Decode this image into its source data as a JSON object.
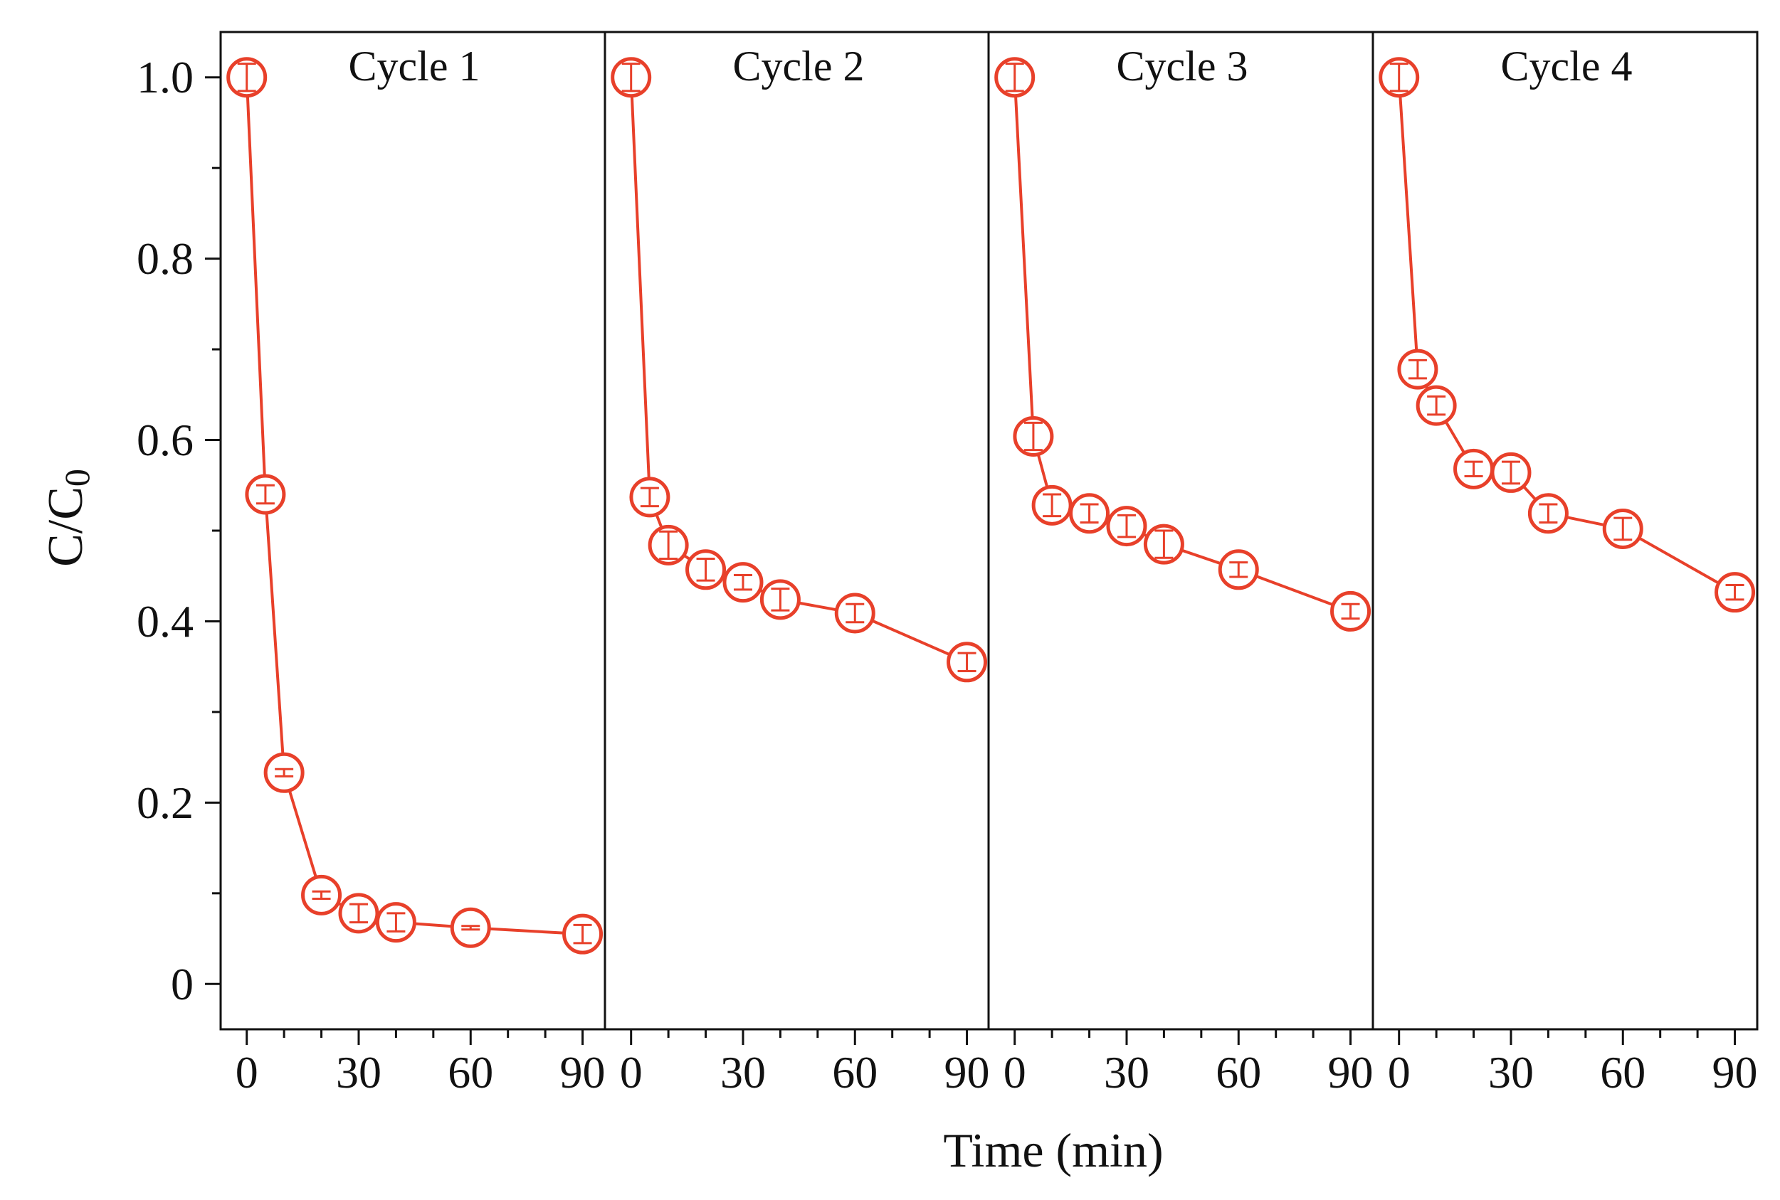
{
  "chart_data": {
    "type": "line",
    "xlabel": "Time (min)",
    "ylabel": "C/C",
    "ylabel_subscript": "0",
    "ylim": [
      -0.05,
      1.05
    ],
    "xlim": [
      -7,
      96
    ],
    "y_ticks": [
      0,
      0.2,
      0.4,
      0.6,
      0.8,
      1.0
    ],
    "y_tick_labels": [
      "0",
      "0.2",
      "0.4",
      "0.6",
      "0.8",
      "1.0"
    ],
    "x_ticks": [
      0,
      30,
      60,
      90
    ],
    "x_tick_labels": [
      "0",
      "30",
      "60",
      "90"
    ],
    "marker": "open-circle",
    "colors": {
      "series": "#e8402a",
      "axis": "#111111"
    },
    "series": [
      {
        "name": "Cycle 1",
        "x": [
          0,
          5,
          10,
          20,
          30,
          40,
          60,
          90
        ],
        "values": [
          1.0,
          0.54,
          0.233,
          0.098,
          0.078,
          0.068,
          0.062,
          0.055
        ],
        "errors": [
          0.015,
          0.01,
          0.004,
          0.004,
          0.01,
          0.01,
          0.002,
          0.01
        ]
      },
      {
        "name": "Cycle 2",
        "x": [
          0,
          5,
          10,
          20,
          30,
          40,
          60,
          90
        ],
        "values": [
          1.0,
          0.537,
          0.484,
          0.457,
          0.443,
          0.424,
          0.409,
          0.355
        ],
        "errors": [
          0.015,
          0.01,
          0.015,
          0.012,
          0.008,
          0.012,
          0.01,
          0.01
        ]
      },
      {
        "name": "Cycle 3",
        "x": [
          0,
          5,
          10,
          20,
          30,
          40,
          60,
          90
        ],
        "values": [
          1.0,
          0.604,
          0.528,
          0.519,
          0.505,
          0.485,
          0.457,
          0.411
        ],
        "errors": [
          0.015,
          0.015,
          0.012,
          0.01,
          0.012,
          0.015,
          0.008,
          0.008
        ]
      },
      {
        "name": "Cycle 4",
        "x": [
          0,
          5,
          10,
          20,
          30,
          40,
          60,
          90
        ],
        "values": [
          1.0,
          0.678,
          0.638,
          0.568,
          0.564,
          0.519,
          0.502,
          0.432
        ],
        "errors": [
          0.015,
          0.01,
          0.01,
          0.008,
          0.012,
          0.01,
          0.012,
          0.008
        ]
      }
    ]
  }
}
